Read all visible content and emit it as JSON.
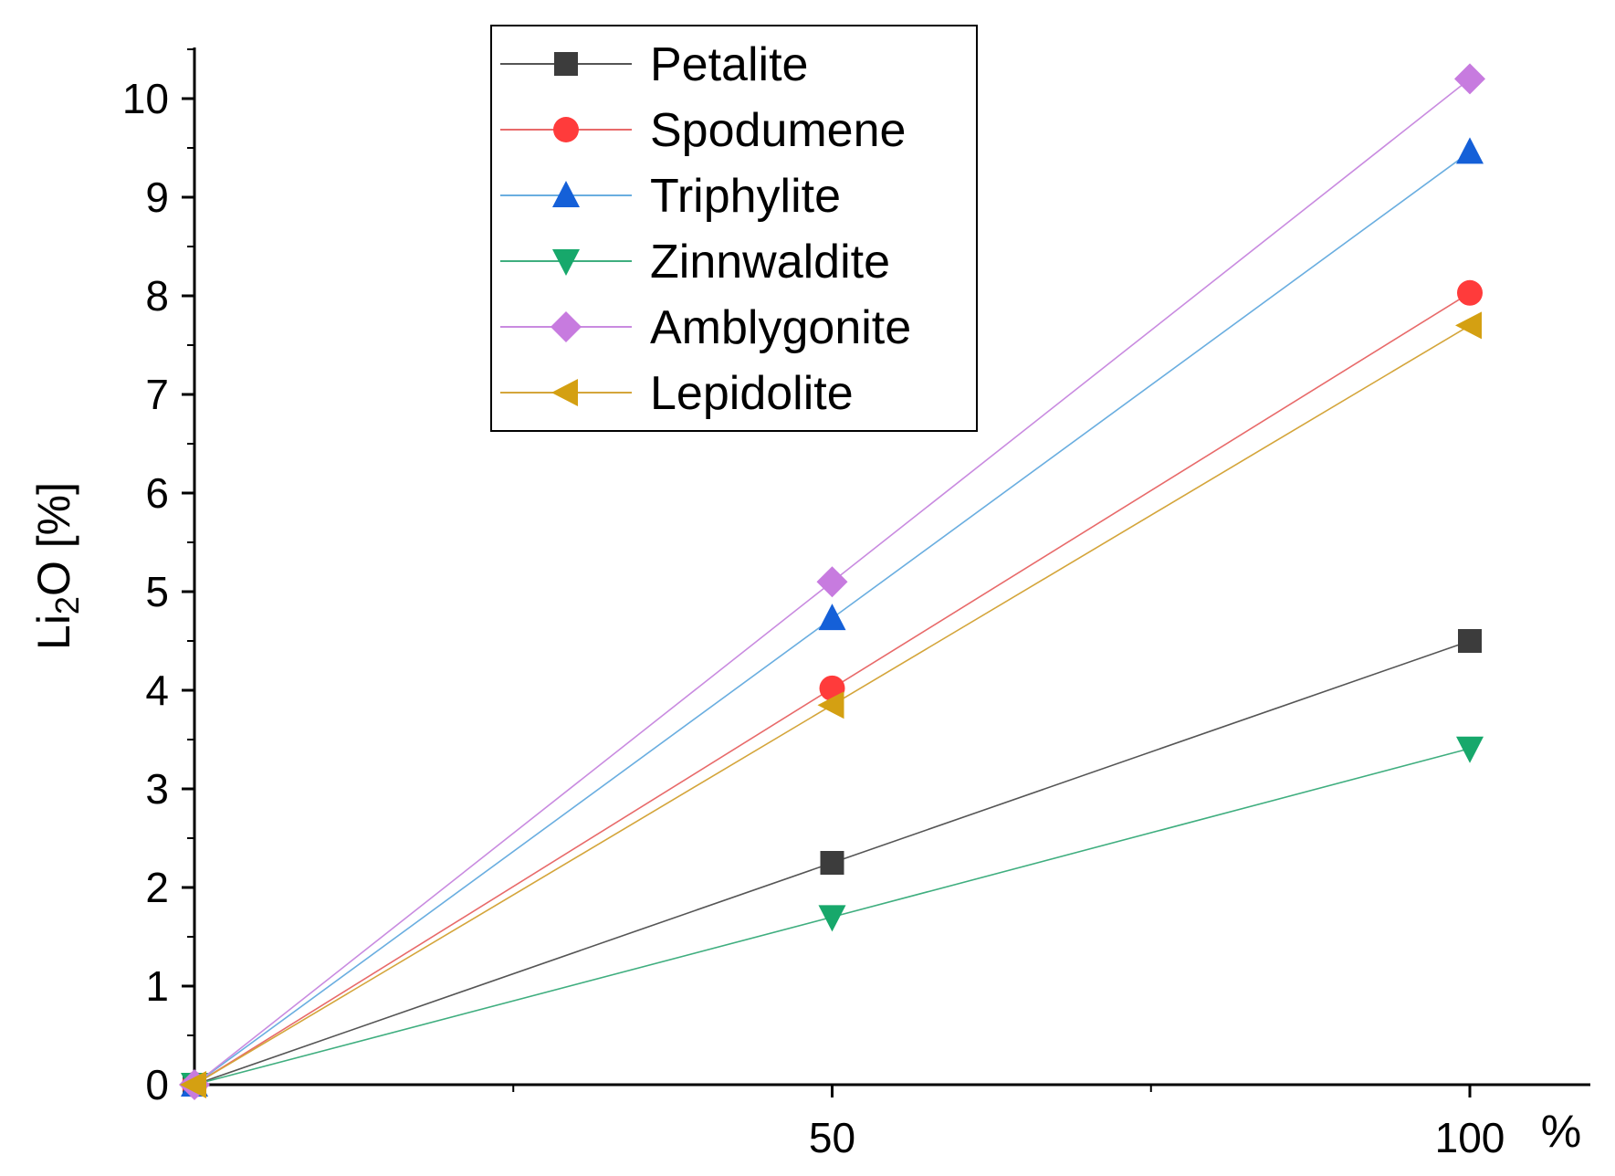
{
  "chart_data": {
    "type": "line",
    "title": "",
    "xlabel": "%",
    "ylabel": "Li2O [%]",
    "ylabel_parts": {
      "base": "Li",
      "sub": "2",
      "rest": "O [%]"
    },
    "x": [
      0,
      50,
      100
    ],
    "x_ticks": [
      50,
      100
    ],
    "xlim": [
      0,
      110
    ],
    "ylim": [
      0,
      10.5
    ],
    "y_ticks": [
      0,
      1,
      2,
      3,
      4,
      5,
      6,
      7,
      8,
      9,
      10
    ],
    "grid": false,
    "legend_position": "top-center",
    "series": [
      {
        "name": "Petalite",
        "values": [
          0,
          2.25,
          4.5
        ],
        "color": "#3c3c3c",
        "line_color": "#555555",
        "marker": "square"
      },
      {
        "name": "Spodumene",
        "values": [
          0,
          4.02,
          8.03
        ],
        "color": "#ff3b3b",
        "line_color": "#e86a6a",
        "marker": "circle"
      },
      {
        "name": "Triphylite",
        "values": [
          0,
          4.73,
          9.46
        ],
        "color": "#1560d8",
        "line_color": "#6aaee0",
        "marker": "triangle-up"
      },
      {
        "name": "Zinnwaldite",
        "values": [
          0,
          1.7,
          3.41
        ],
        "color": "#17a86b",
        "line_color": "#3fae7f",
        "marker": "triangle-down"
      },
      {
        "name": "Amblygonite",
        "values": [
          0,
          5.1,
          10.2
        ],
        "color": "#c77bdf",
        "line_color": "#c98be0",
        "marker": "diamond"
      },
      {
        "name": "Lepidolite",
        "values": [
          0,
          3.85,
          7.7
        ],
        "color": "#d4a012",
        "line_color": "#d4a53a",
        "marker": "triangle-left"
      }
    ]
  }
}
